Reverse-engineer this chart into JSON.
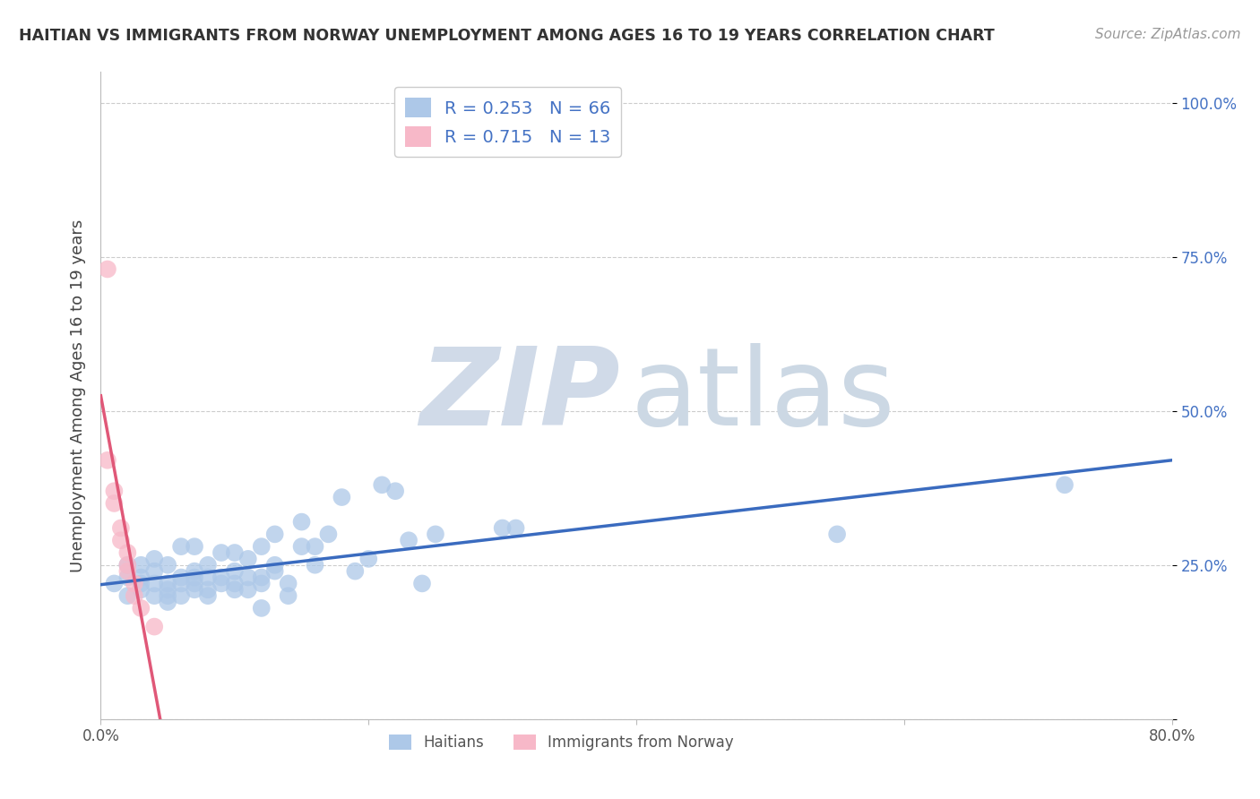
{
  "title": "HAITIAN VS IMMIGRANTS FROM NORWAY UNEMPLOYMENT AMONG AGES 16 TO 19 YEARS CORRELATION CHART",
  "source": "Source: ZipAtlas.com",
  "ylabel": "Unemployment Among Ages 16 to 19 years",
  "xlim": [
    0.0,
    0.8
  ],
  "ylim": [
    0.0,
    1.05
  ],
  "xticks": [
    0.0,
    0.2,
    0.4,
    0.6,
    0.8
  ],
  "xticklabels": [
    "0.0%",
    "",
    "",
    "",
    "80.0%"
  ],
  "yticks": [
    0.0,
    0.25,
    0.5,
    0.75,
    1.0
  ],
  "yticklabels": [
    "",
    "25.0%",
    "50.0%",
    "75.0%",
    "100.0%"
  ],
  "haiti_R": 0.253,
  "haiti_N": 66,
  "norway_R": 0.715,
  "norway_N": 13,
  "haiti_color": "#adc8e8",
  "norway_color": "#f7b8c8",
  "haiti_line_color": "#3a6bbf",
  "norway_line_color": "#e05878",
  "haiti_x": [
    0.01,
    0.02,
    0.02,
    0.02,
    0.03,
    0.03,
    0.03,
    0.03,
    0.04,
    0.04,
    0.04,
    0.04,
    0.05,
    0.05,
    0.05,
    0.05,
    0.05,
    0.06,
    0.06,
    0.06,
    0.06,
    0.07,
    0.07,
    0.07,
    0.07,
    0.07,
    0.08,
    0.08,
    0.08,
    0.08,
    0.09,
    0.09,
    0.09,
    0.1,
    0.1,
    0.1,
    0.1,
    0.11,
    0.11,
    0.11,
    0.12,
    0.12,
    0.12,
    0.12,
    0.13,
    0.13,
    0.13,
    0.14,
    0.14,
    0.15,
    0.15,
    0.16,
    0.16,
    0.17,
    0.18,
    0.19,
    0.2,
    0.21,
    0.22,
    0.23,
    0.24,
    0.25,
    0.3,
    0.31,
    0.55,
    0.72
  ],
  "haiti_y": [
    0.22,
    0.2,
    0.23,
    0.25,
    0.21,
    0.22,
    0.23,
    0.25,
    0.2,
    0.22,
    0.24,
    0.26,
    0.19,
    0.2,
    0.21,
    0.22,
    0.25,
    0.2,
    0.22,
    0.23,
    0.28,
    0.21,
    0.22,
    0.23,
    0.24,
    0.28,
    0.2,
    0.21,
    0.23,
    0.25,
    0.22,
    0.23,
    0.27,
    0.21,
    0.22,
    0.24,
    0.27,
    0.21,
    0.23,
    0.26,
    0.18,
    0.22,
    0.23,
    0.28,
    0.24,
    0.25,
    0.3,
    0.2,
    0.22,
    0.28,
    0.32,
    0.25,
    0.28,
    0.3,
    0.36,
    0.24,
    0.26,
    0.38,
    0.37,
    0.29,
    0.22,
    0.3,
    0.31,
    0.31,
    0.3,
    0.38
  ],
  "norway_x": [
    0.005,
    0.005,
    0.01,
    0.01,
    0.015,
    0.015,
    0.02,
    0.02,
    0.02,
    0.025,
    0.025,
    0.03,
    0.04
  ],
  "norway_y": [
    0.73,
    0.42,
    0.37,
    0.35,
    0.31,
    0.29,
    0.27,
    0.25,
    0.24,
    0.22,
    0.2,
    0.18,
    0.15
  ],
  "norway_line_x0": 0.0,
  "norway_line_x1": 0.045,
  "haiti_line_x0": 0.0,
  "haiti_line_x1": 0.8
}
